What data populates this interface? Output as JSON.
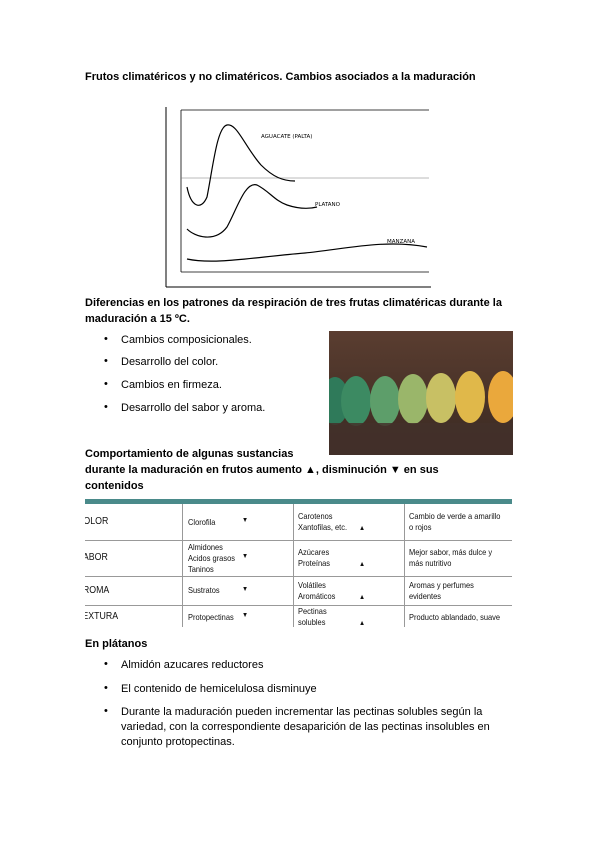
{
  "section1": {
    "title": "Frutos climatéricos y no climatéricos. Cambios asociados a la maduración",
    "figure": {
      "curves": [
        "AGUACATE (PALTA)",
        "PLATANO",
        "MANZANA"
      ]
    }
  },
  "section2": {
    "title": "Diferencias en los patrones da respiración de tres frutas climatéricas durante la maduración a 15 ºC.",
    "items": [
      "Cambios composicionales.",
      "Desarrollo del color.",
      "Cambios en firmeza.",
      "Desarrollo del sabor y aroma."
    ]
  },
  "section3": {
    "title": [
      "Comportamiento de algunas sustancias",
      "durante la maduración en frutos  aumento ▲, disminución ▼ en sus",
      "contenidos"
    ],
    "table": {
      "rows": [
        {
          "attribute": "COLOR",
          "decrease": [
            "Clorofila"
          ],
          "decrease_arrow": "▼",
          "increase": [
            "Carotenos",
            "Xantofilas, etc."
          ],
          "increase_arrow": "▲",
          "effect": [
            "Cambio de verde a amarillo",
            "o rojos"
          ]
        },
        {
          "attribute": "SABOR",
          "decrease": [
            "Almidones",
            "Acidos grasos",
            "Taninos"
          ],
          "decrease_arrow": "▼",
          "increase": [
            "Azúcares",
            "Proteínas"
          ],
          "increase_arrow": "▲",
          "effect": [
            "Mejor sabor, más dulce y",
            "más nutritivo"
          ]
        },
        {
          "attribute": "AROMA",
          "decrease": [
            "Sustratos"
          ],
          "decrease_arrow": "▼",
          "increase": [
            "Volátiles",
            "Aromáticos"
          ],
          "increase_arrow": "▲",
          "effect": [
            "Aromas    y    perfumes",
            "evidentes"
          ]
        },
        {
          "attribute": "TEXTURA",
          "decrease": [
            "Protopectinas"
          ],
          "decrease_arrow": "▼",
          "increase": [
            "Pectinas",
            "solubles"
          ],
          "increase_arrow": "▲",
          "effect": [
            "Producto ablandado, suave"
          ]
        }
      ]
    }
  },
  "section4": {
    "title": "En plátanos",
    "items": [
      "Almidón azucares reductores",
      "El contenido de hemicelulosa disminuye",
      "Durante la maduración pueden incrementar las pectinas solubles según la variedad, con la correspondiente desaparición de las pectinas insolubles en conjunto protopectinas."
    ]
  }
}
